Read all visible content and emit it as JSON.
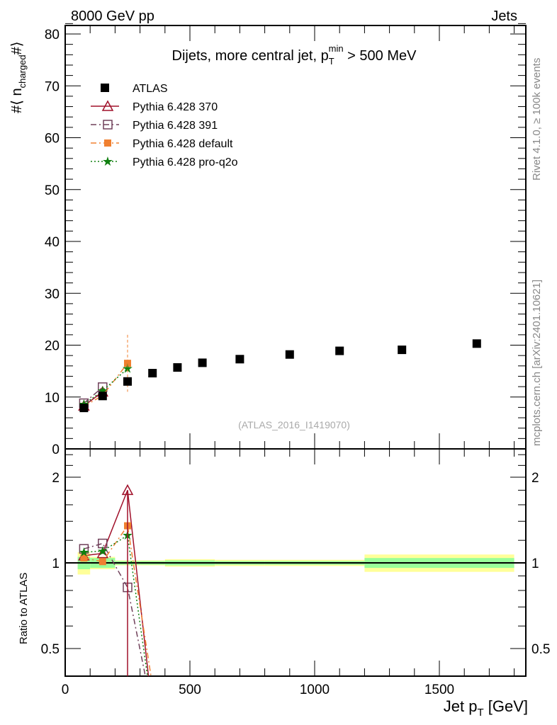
{
  "header": {
    "left": "8000 GeV pp",
    "right": "Jets"
  },
  "side": {
    "rivet": "Rivet 4.1.0, ≥ 100k events",
    "mcplots": "mcplots.cern.ch [arXiv:2401.10621]"
  },
  "chart_data": [
    {
      "type": "scatter",
      "title": "Dijets, more central jet, p_T^min > 500 MeV",
      "ylabel": "#⟨ n_charged #⟩",
      "xlim": [
        0,
        1850
      ],
      "ylim": [
        0,
        82
      ],
      "yticks": [
        0,
        10,
        20,
        30,
        40,
        50,
        60,
        70,
        80
      ],
      "watermark": "(ATLAS_2016_I1419070)",
      "legend": [
        "ATLAS",
        "Pythia 6.428 370",
        "Pythia 6.428 391",
        "Pythia 6.428 default",
        "Pythia 6.428 pro-q2o"
      ],
      "data": {
        "x": [
          75,
          150,
          250,
          350,
          450,
          550,
          700,
          900,
          1100,
          1350,
          1650
        ],
        "y": [
          7.9,
          10.2,
          13.0,
          14.6,
          15.7,
          16.6,
          17.3,
          18.2,
          18.9,
          19.1,
          20.3
        ]
      },
      "series": [
        {
          "name": "Pythia 6.428 370",
          "color": "#a0102a",
          "x": [
            75,
            150
          ],
          "y": [
            8.3,
            11.0
          ]
        },
        {
          "name": "Pythia 6.428 391",
          "color": "#70405a",
          "x": [
            75,
            150
          ],
          "y": [
            8.8,
            11.9
          ]
        },
        {
          "name": "Pythia 6.428 default",
          "color": "#f08030",
          "x": [
            75,
            150,
            250
          ],
          "y": [
            8.2,
            10.3,
            16.5
          ]
        },
        {
          "name": "Pythia 6.428 pro-q2o",
          "color": "#108010",
          "x": [
            75,
            150,
            250
          ],
          "y": [
            8.6,
            11.2,
            15.5
          ]
        }
      ]
    },
    {
      "type": "line",
      "ylabel": "Ratio to ATLAS",
      "xlabel": "Jet p_T [GeV]",
      "ylim": [
        0.4,
        2.5
      ],
      "yscale": "log",
      "xticks": [
        0,
        500,
        1000,
        1500
      ],
      "yticks": [
        0.5,
        1,
        2
      ],
      "bins": [
        50,
        100,
        200,
        300,
        400,
        500,
        600,
        800,
        1000,
        1200,
        1500,
        1800
      ],
      "stat_band": [
        0.05,
        0.04,
        0.015,
        0.015,
        0.02,
        0.02,
        0.015,
        0.015,
        0.015,
        0.04,
        0.04
      ],
      "total_band": [
        0.09,
        0.05,
        0.02,
        0.02,
        0.03,
        0.03,
        0.025,
        0.025,
        0.025,
        0.07,
        0.07
      ],
      "series": [
        {
          "name": "Pythia 6.428 370",
          "x": [
            75,
            150,
            250,
            350
          ],
          "y": [
            1.06,
            1.08,
            1.8,
            0.2
          ]
        },
        {
          "name": "Pythia 6.428 391",
          "x": [
            75,
            150,
            250,
            350
          ],
          "y": [
            1.12,
            1.17,
            0.82,
            0.2
          ]
        },
        {
          "name": "Pythia 6.428 default",
          "x": [
            75,
            150,
            250,
            350
          ],
          "y": [
            1.04,
            1.01,
            1.35,
            0.37
          ]
        },
        {
          "name": "Pythia 6.428 pro-q2o",
          "x": [
            75,
            150,
            250,
            350
          ],
          "y": [
            1.09,
            1.1,
            1.25,
            0.3
          ]
        }
      ]
    }
  ]
}
